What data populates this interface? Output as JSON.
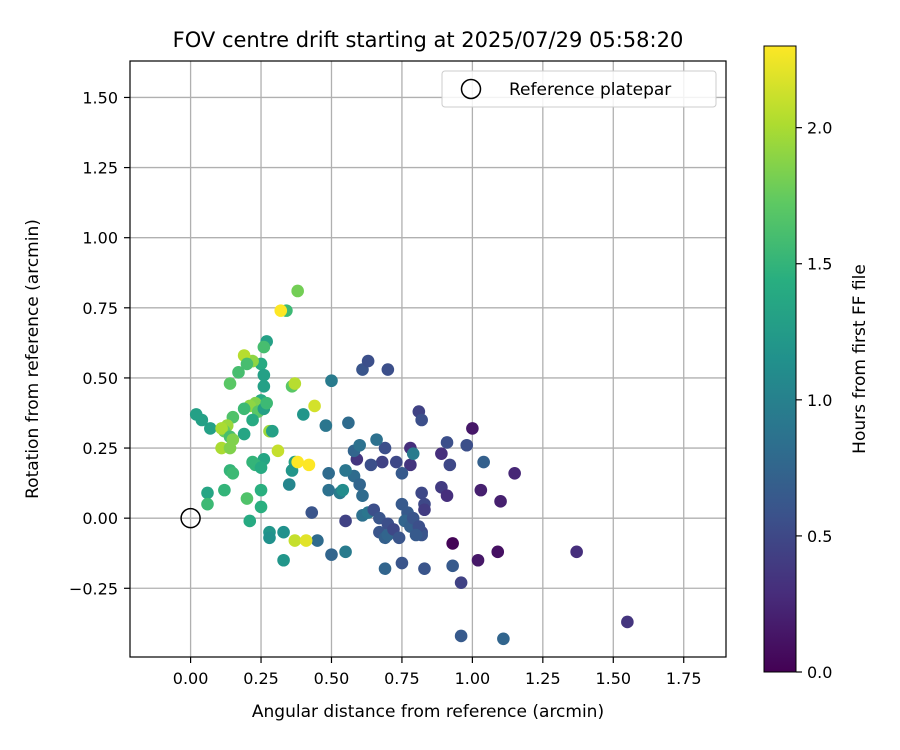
{
  "chart_data": {
    "type": "scatter",
    "title": "FOV centre drift starting at 2025/07/29 05:58:20",
    "xlabel": "Angular distance from reference (arcmin)",
    "ylabel": "Rotation from reference (arcmin)",
    "xlim": [
      -0.215,
      1.9
    ],
    "ylim": [
      -0.495,
      1.63
    ],
    "xticks": [
      0.0,
      0.25,
      0.5,
      0.75,
      1.0,
      1.25,
      1.5,
      1.75
    ],
    "xtick_labels": [
      "0.00",
      "0.25",
      "0.50",
      "0.75",
      "1.00",
      "1.25",
      "1.50",
      "1.75"
    ],
    "yticks": [
      -0.25,
      0.0,
      0.25,
      0.5,
      0.75,
      1.0,
      1.25,
      1.5
    ],
    "ytick_labels": [
      "−0.25",
      "0.00",
      "0.25",
      "0.50",
      "0.75",
      "1.00",
      "1.25",
      "1.50"
    ],
    "grid": true,
    "legend": {
      "position": "top-right",
      "entries": [
        "Reference platepar"
      ]
    },
    "reference_point": {
      "x": 0.0,
      "y": 0.0,
      "label": "Reference platepar"
    },
    "colorbar": {
      "label": "Hours from first FF file",
      "range": [
        0.0,
        2.3
      ],
      "ticks": [
        0.0,
        0.5,
        1.0,
        1.5,
        2.0
      ],
      "tick_labels": [
        "0.0",
        "0.5",
        "1.0",
        "1.5",
        "2.0"
      ],
      "colormap": "viridis"
    },
    "points": [
      [
        0.93,
        -0.09,
        0.02
      ],
      [
        1.09,
        -0.12,
        0.1
      ],
      [
        1.02,
        -0.15,
        0.15
      ],
      [
        1.37,
        -0.12,
        0.3
      ],
      [
        1.55,
        -0.37,
        0.35
      ],
      [
        1.0,
        0.32,
        0.15
      ],
      [
        1.03,
        0.1,
        0.2
      ],
      [
        1.1,
        0.06,
        0.2
      ],
      [
        1.15,
        0.16,
        0.25
      ],
      [
        0.96,
        -0.23,
        0.45
      ],
      [
        0.96,
        -0.42,
        0.65
      ],
      [
        1.11,
        -0.43,
        0.75
      ],
      [
        0.98,
        0.26,
        0.55
      ],
      [
        0.91,
        0.27,
        0.55
      ],
      [
        0.92,
        0.19,
        0.5
      ],
      [
        1.04,
        0.2,
        0.7
      ],
      [
        0.89,
        0.23,
        0.3
      ],
      [
        0.89,
        0.11,
        0.4
      ],
      [
        0.91,
        0.08,
        0.3
      ],
      [
        0.93,
        -0.17,
        0.65
      ],
      [
        0.81,
        0.38,
        0.45
      ],
      [
        0.82,
        0.35,
        0.55
      ],
      [
        0.78,
        0.25,
        0.3
      ],
      [
        0.78,
        0.19,
        0.35
      ],
      [
        0.82,
        0.09,
        0.5
      ],
      [
        0.83,
        0.05,
        0.5
      ],
      [
        0.83,
        0.03,
        0.4
      ],
      [
        0.82,
        -0.05,
        0.5
      ],
      [
        0.82,
        -0.06,
        0.6
      ],
      [
        0.83,
        -0.18,
        0.6
      ],
      [
        0.75,
        -0.16,
        0.6
      ],
      [
        0.69,
        -0.18,
        0.75
      ],
      [
        0.79,
        0.23,
        0.95
      ],
      [
        0.75,
        0.16,
        0.65
      ],
      [
        0.73,
        0.2,
        0.5
      ],
      [
        0.68,
        0.2,
        0.45
      ],
      [
        0.69,
        0.25,
        0.55
      ],
      [
        0.66,
        0.28,
        0.85
      ],
      [
        0.64,
        0.19,
        0.55
      ],
      [
        0.59,
        0.21,
        0.35
      ],
      [
        0.58,
        0.24,
        0.75
      ],
      [
        0.6,
        0.26,
        0.85
      ],
      [
        0.58,
        0.15,
        0.8
      ],
      [
        0.55,
        0.17,
        0.9
      ],
      [
        0.6,
        0.12,
        0.75
      ],
      [
        0.61,
        0.08,
        0.8
      ],
      [
        0.61,
        0.01,
        0.85
      ],
      [
        0.63,
        0.02,
        0.9
      ],
      [
        0.65,
        0.03,
        0.55
      ],
      [
        0.67,
        0.0,
        0.6
      ],
      [
        0.7,
        -0.02,
        0.55
      ],
      [
        0.67,
        -0.05,
        0.6
      ],
      [
        0.69,
        -0.07,
        0.7
      ],
      [
        0.7,
        -0.06,
        0.75
      ],
      [
        0.72,
        -0.04,
        0.5
      ],
      [
        0.74,
        -0.07,
        0.6
      ],
      [
        0.75,
        0.05,
        0.65
      ],
      [
        0.77,
        0.02,
        0.65
      ],
      [
        0.76,
        -0.01,
        0.75
      ],
      [
        0.78,
        -0.03,
        0.7
      ],
      [
        0.79,
        0.0,
        0.6
      ],
      [
        0.81,
        -0.03,
        0.55
      ],
      [
        0.8,
        -0.06,
        0.65
      ],
      [
        0.55,
        -0.01,
        0.45
      ],
      [
        0.55,
        -0.12,
        0.95
      ],
      [
        0.5,
        -0.13,
        0.75
      ],
      [
        0.49,
        0.1,
        0.85
      ],
      [
        0.53,
        0.09,
        0.95
      ],
      [
        0.54,
        0.1,
        1.1
      ],
      [
        0.49,
        0.16,
        0.8
      ],
      [
        0.48,
        0.33,
        0.9
      ],
      [
        0.56,
        0.34,
        0.8
      ],
      [
        0.5,
        0.49,
        0.95
      ],
      [
        0.61,
        0.53,
        0.6
      ],
      [
        0.63,
        0.56,
        0.55
      ],
      [
        0.7,
        0.53,
        0.55
      ],
      [
        0.43,
        0.02,
        0.6
      ],
      [
        0.45,
        -0.08,
        0.8
      ],
      [
        0.4,
        0.37,
        1.2
      ],
      [
        0.36,
        0.47,
        1.7
      ],
      [
        0.38,
        0.81,
        1.8
      ],
      [
        0.34,
        0.74,
        1.55
      ],
      [
        0.32,
        0.74,
        2.3
      ],
      [
        0.27,
        0.63,
        1.3
      ],
      [
        0.26,
        0.61,
        1.6
      ],
      [
        0.25,
        0.55,
        1.4
      ],
      [
        0.22,
        0.56,
        1.9
      ],
      [
        0.19,
        0.58,
        2.05
      ],
      [
        0.2,
        0.55,
        1.6
      ],
      [
        0.17,
        0.52,
        1.6
      ],
      [
        0.14,
        0.48,
        1.7
      ],
      [
        0.26,
        0.51,
        1.3
      ],
      [
        0.26,
        0.47,
        1.3
      ],
      [
        0.25,
        0.42,
        1.4
      ],
      [
        0.23,
        0.41,
        1.85
      ],
      [
        0.21,
        0.4,
        1.9
      ],
      [
        0.19,
        0.39,
        1.55
      ],
      [
        0.24,
        0.38,
        1.7
      ],
      [
        0.26,
        0.39,
        1.3
      ],
      [
        0.27,
        0.41,
        1.55
      ],
      [
        0.22,
        0.35,
        1.4
      ],
      [
        0.19,
        0.3,
        1.35
      ],
      [
        0.15,
        0.36,
        1.65
      ],
      [
        0.13,
        0.33,
        1.95
      ],
      [
        0.12,
        0.31,
        1.75
      ],
      [
        0.07,
        0.32,
        1.3
      ],
      [
        0.04,
        0.35,
        1.3
      ],
      [
        0.02,
        0.37,
        1.3
      ],
      [
        0.11,
        0.32,
        2.0
      ],
      [
        0.14,
        0.29,
        1.6
      ],
      [
        0.11,
        0.25,
        2.0
      ],
      [
        0.14,
        0.25,
        1.85
      ],
      [
        0.15,
        0.28,
        1.85
      ],
      [
        0.28,
        0.31,
        1.95
      ],
      [
        0.29,
        0.31,
        1.3
      ],
      [
        0.37,
        0.2,
        1.3
      ],
      [
        0.36,
        0.17,
        1.2
      ],
      [
        0.31,
        0.24,
        2.1
      ],
      [
        0.26,
        0.21,
        1.35
      ],
      [
        0.23,
        0.19,
        1.5
      ],
      [
        0.22,
        0.2,
        1.5
      ],
      [
        0.25,
        0.18,
        1.4
      ],
      [
        0.14,
        0.17,
        1.5
      ],
      [
        0.15,
        0.16,
        1.55
      ],
      [
        0.38,
        0.2,
        2.3
      ],
      [
        0.42,
        0.19,
        2.3
      ],
      [
        0.35,
        0.12,
        1.05
      ],
      [
        0.25,
        0.1,
        1.45
      ],
      [
        0.2,
        0.07,
        1.65
      ],
      [
        0.12,
        0.1,
        1.5
      ],
      [
        0.06,
        0.09,
        1.35
      ],
      [
        0.06,
        0.05,
        1.55
      ],
      [
        0.25,
        0.04,
        1.45
      ],
      [
        0.21,
        -0.01,
        1.4
      ],
      [
        0.28,
        -0.05,
        1.2
      ],
      [
        0.28,
        -0.07,
        1.15
      ],
      [
        0.33,
        -0.05,
        1.15
      ],
      [
        0.37,
        -0.08,
        2.1
      ],
      [
        0.41,
        -0.08,
        2.2
      ],
      [
        0.33,
        -0.15,
        1.2
      ],
      [
        0.44,
        0.4,
        2.15
      ],
      [
        0.37,
        0.48,
        2.05
      ]
    ]
  }
}
